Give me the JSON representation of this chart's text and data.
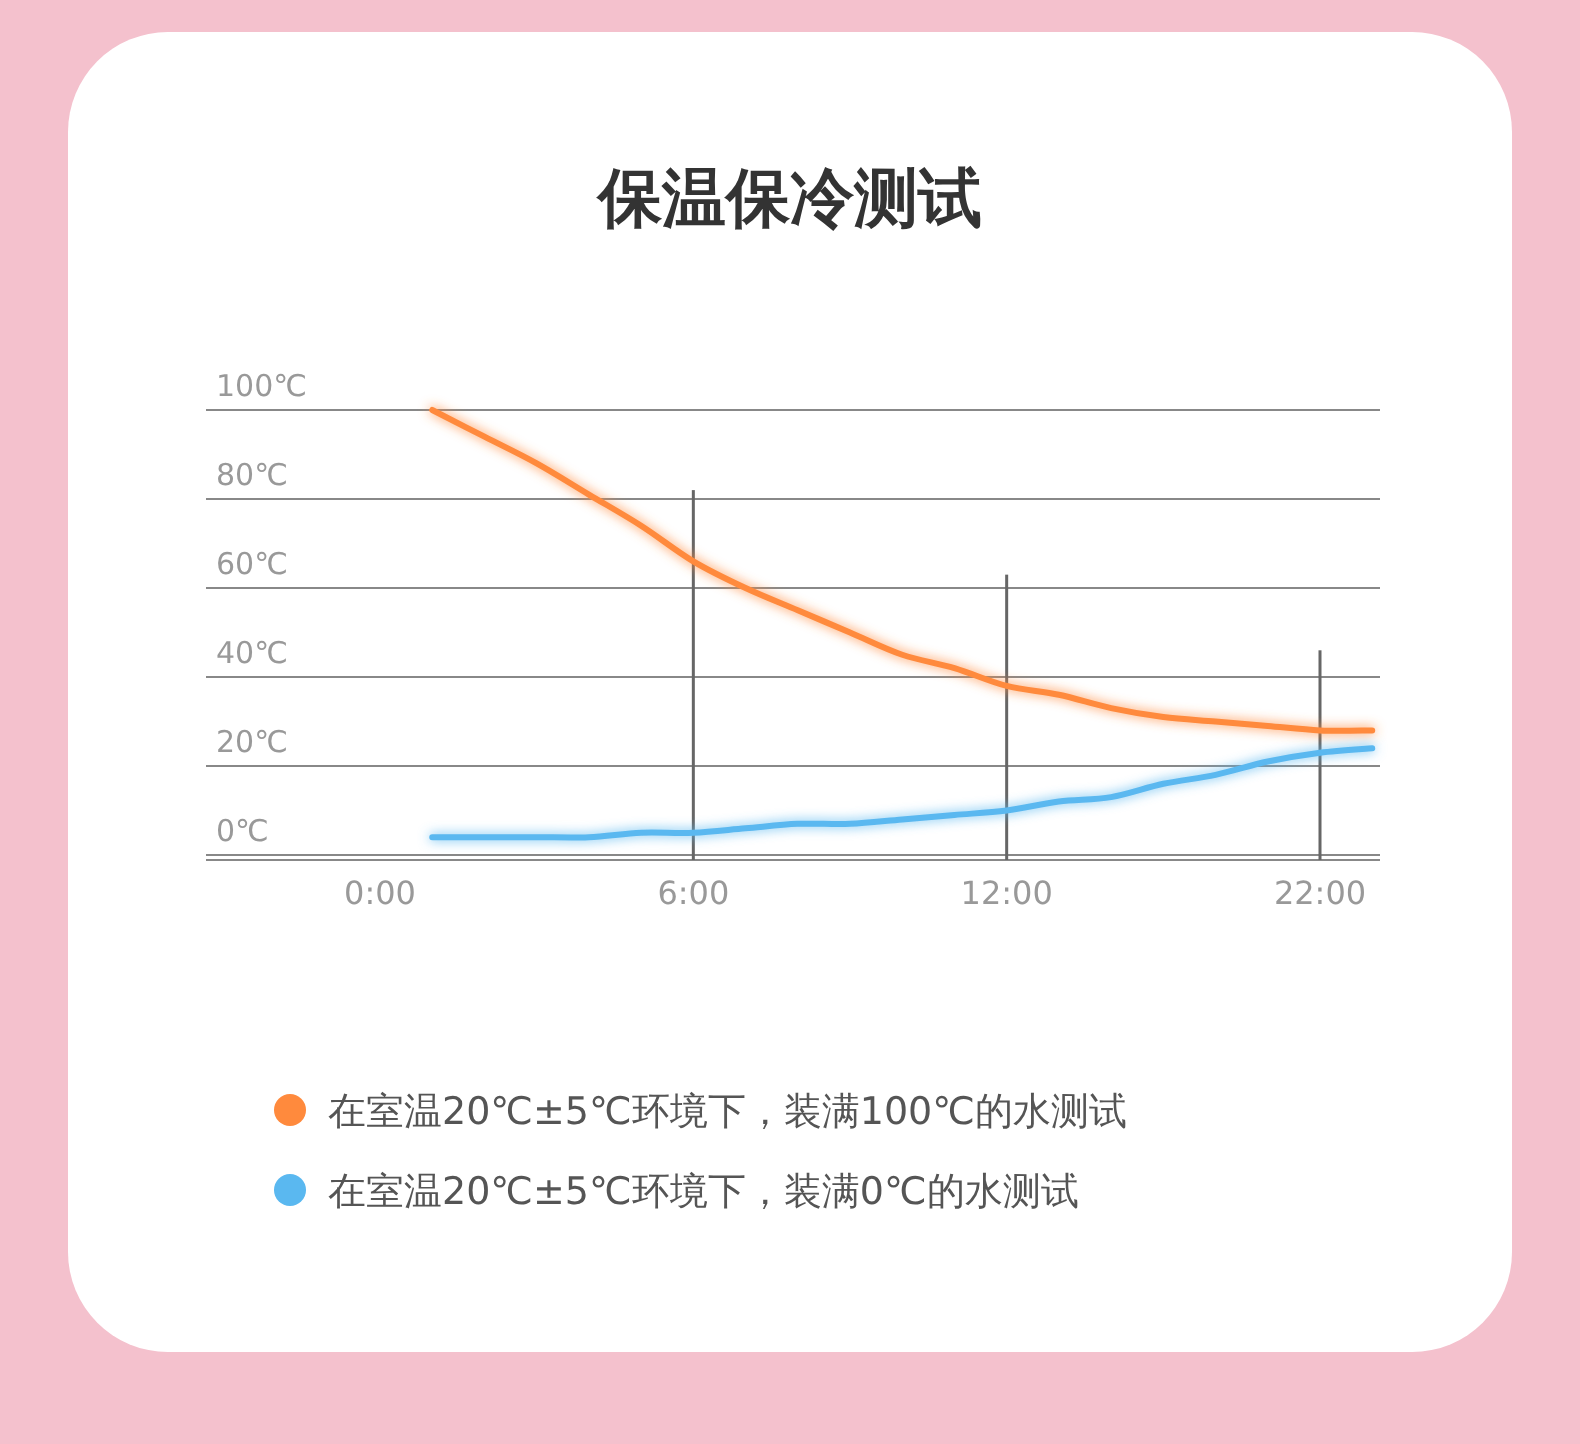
{
  "chart_data": {
    "type": "line",
    "title": "保温保冷测试",
    "categories": [
      "0:00",
      null,
      null,
      null,
      null,
      null,
      "6:00",
      null,
      null,
      null,
      null,
      null,
      "12:00",
      null,
      null,
      null,
      null,
      null,
      "22:00",
      null
    ],
    "series": [
      {
        "type": "bar",
        "color": "#666666",
        "values": [
          null,
          null,
          null,
          null,
          null,
          null,
          82,
          null,
          null,
          null,
          null,
          null,
          63,
          null,
          null,
          null,
          null,
          null,
          46,
          null
        ]
      },
      {
        "name": "在室温20℃±5℃环境下，装满100℃的水测试",
        "color": "#ff8a3d",
        "values": [
          null,
          100,
          94,
          88,
          81,
          74,
          66,
          60,
          55,
          50,
          45,
          42,
          38,
          36,
          33,
          31,
          30,
          29,
          28,
          28
        ]
      },
      {
        "name": "在室温20℃±5℃环境下，装满0℃的水测试",
        "color": "#5ab8f0",
        "values": [
          null,
          4,
          4,
          4,
          4,
          5,
          5,
          6,
          7,
          7,
          8,
          9,
          10,
          12,
          13,
          16,
          18,
          21,
          23,
          24
        ]
      }
    ],
    "ylim": [
      0,
      100
    ],
    "yticks": [
      {
        "value": 0,
        "label": "0℃"
      },
      {
        "value": 20,
        "label": "20℃"
      },
      {
        "value": 40,
        "label": "40℃"
      },
      {
        "value": 60,
        "label": "60℃"
      },
      {
        "value": 80,
        "label": "80℃"
      },
      {
        "value": 100,
        "label": "100℃"
      }
    ],
    "grid": "y",
    "legend": "bottom"
  }
}
